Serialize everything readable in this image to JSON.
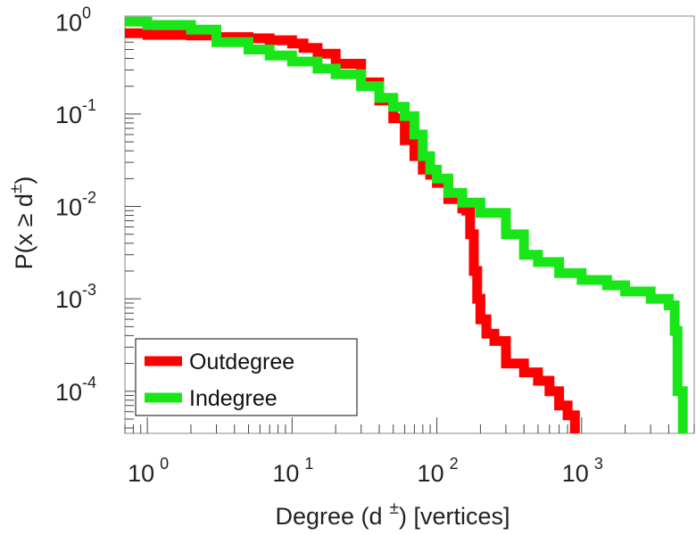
{
  "chart_data": {
    "type": "line",
    "xlabel_pre": "Degree (d",
    "xlabel_sup": "±",
    "xlabel_post": ") [vertices]",
    "ylabel_pre": "P(x ≥ d",
    "ylabel_sup": "±",
    "ylabel_post": ")",
    "xscale": "log",
    "yscale": "log",
    "xlim": [
      0.7,
      6000
    ],
    "ylim": [
      3.5e-05,
      1.15
    ],
    "x_ticks": [
      {
        "base": "10",
        "exp": "0",
        "value": 1
      },
      {
        "base": "10",
        "exp": "1",
        "value": 10
      },
      {
        "base": "10",
        "exp": "2",
        "value": 100
      },
      {
        "base": "10",
        "exp": "3",
        "value": 1000
      }
    ],
    "y_ticks": [
      {
        "base": "10",
        "exp": "0",
        "value": 1
      },
      {
        "base": "10",
        "exp": "-1",
        "value": 0.1
      },
      {
        "base": "10",
        "exp": "-2",
        "value": 0.01
      },
      {
        "base": "10",
        "exp": "-3",
        "value": 0.001
      },
      {
        "base": "10",
        "exp": "-4",
        "value": 0.0001
      }
    ],
    "legend_position": "bottom-left",
    "series": [
      {
        "name": "Outdegree",
        "color": "#ff0000",
        "x": [
          0.7,
          1,
          2,
          3,
          5,
          7,
          10,
          12,
          15,
          20,
          30,
          40,
          50,
          60,
          70,
          80,
          90,
          100,
          120,
          150,
          160,
          170,
          180,
          190,
          200,
          220,
          250,
          300,
          400,
          500,
          600,
          700,
          800,
          900
        ],
        "y": [
          0.75,
          0.72,
          0.71,
          0.68,
          0.66,
          0.63,
          0.58,
          0.52,
          0.45,
          0.35,
          0.22,
          0.14,
          0.09,
          0.052,
          0.035,
          0.025,
          0.022,
          0.018,
          0.012,
          0.0095,
          0.009,
          0.005,
          0.002,
          0.001,
          0.0006,
          0.00042,
          0.00035,
          0.0002,
          0.00016,
          0.00013,
          0.0001,
          7e-05,
          5.5e-05,
          4.5e-05
        ]
      },
      {
        "name": "Indegree",
        "color": "#19e619",
        "x": [
          0.7,
          1,
          2,
          3,
          5,
          7,
          10,
          15,
          20,
          30,
          40,
          50,
          60,
          70,
          80,
          90,
          100,
          120,
          150,
          200,
          300,
          400,
          500,
          700,
          1000,
          1500,
          2000,
          3000,
          4000,
          4400,
          4600,
          5000
        ],
        "y": [
          1.0,
          0.92,
          0.82,
          0.6,
          0.5,
          0.43,
          0.37,
          0.31,
          0.27,
          0.2,
          0.15,
          0.12,
          0.095,
          0.06,
          0.035,
          0.025,
          0.02,
          0.014,
          0.011,
          0.0085,
          0.005,
          0.003,
          0.0025,
          0.0019,
          0.0016,
          0.0014,
          0.0012,
          0.001,
          0.00085,
          0.00045,
          0.0001,
          4.5e-05
        ]
      }
    ]
  }
}
